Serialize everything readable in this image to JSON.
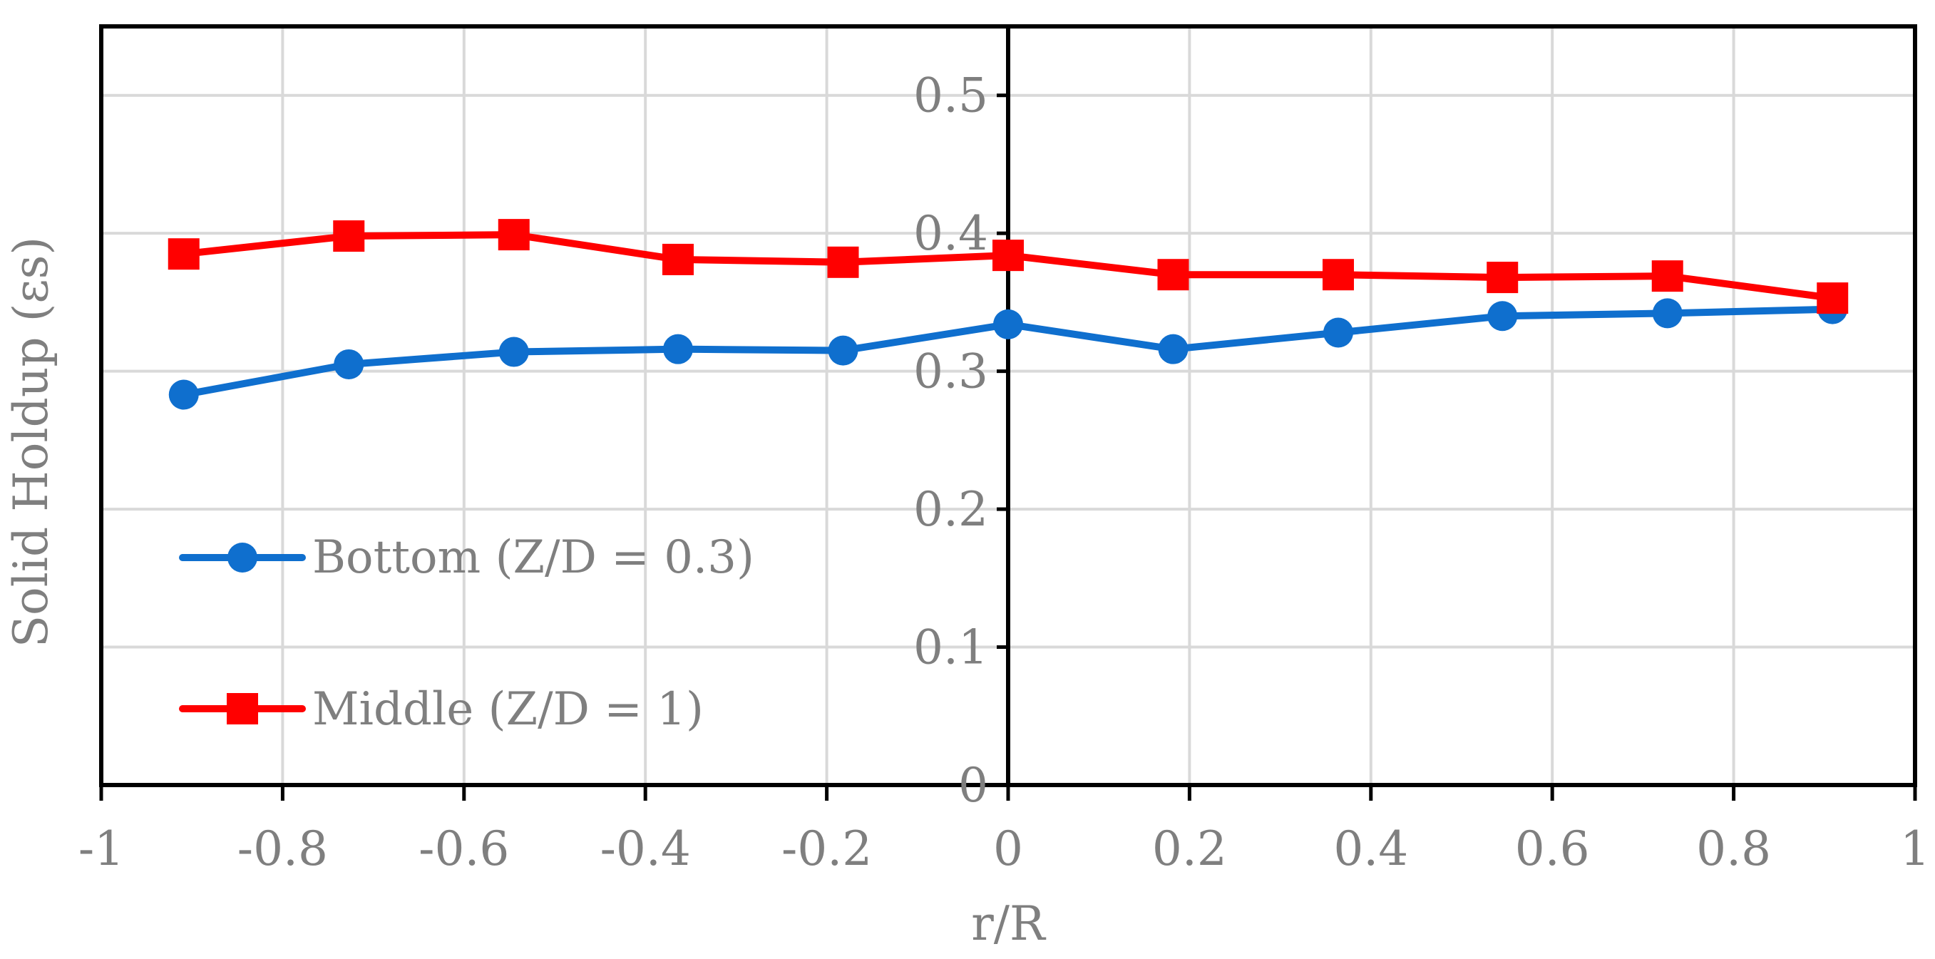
{
  "chart_data": {
    "type": "line",
    "title": "",
    "xlabel": "r/R",
    "ylabel": "Solid Holdup (εs)",
    "xlim": [
      -1,
      1
    ],
    "ylim": [
      0,
      0.55
    ],
    "x_ticks": [
      -1,
      -0.8,
      -0.6,
      -0.4,
      -0.2,
      0,
      0.2,
      0.4,
      0.6,
      0.8,
      1
    ],
    "x_tick_labels": [
      "-1",
      "-0.8",
      "-0.6",
      "-0.4",
      "-0.2",
      "0",
      "0.2",
      "0.4",
      "0.6",
      "0.8",
      "1"
    ],
    "y_ticks": [
      0,
      0.1,
      0.2,
      0.3,
      0.4,
      0.5
    ],
    "y_tick_labels": [
      "0",
      "0.1",
      "0.2",
      "0.3",
      "0.4",
      "0.5"
    ],
    "grid": true,
    "legend_position": "bottom-left",
    "x": [
      -0.909,
      -0.727,
      -0.545,
      -0.364,
      -0.182,
      0,
      0.182,
      0.364,
      0.545,
      0.727,
      0.909
    ],
    "series": [
      {
        "name": "Bottom (Z/D = 0.3)",
        "marker": "circle",
        "color": "#0f6fce",
        "values": [
          0.283,
          0.305,
          0.314,
          0.316,
          0.315,
          0.334,
          0.316,
          0.328,
          0.34,
          0.342,
          0.345
        ]
      },
      {
        "name": "Middle (Z/D = 1)",
        "marker": "square",
        "color": "#ff0000",
        "values": [
          0.385,
          0.398,
          0.399,
          0.381,
          0.379,
          0.384,
          0.37,
          0.37,
          0.368,
          0.369,
          0.353
        ]
      }
    ]
  }
}
